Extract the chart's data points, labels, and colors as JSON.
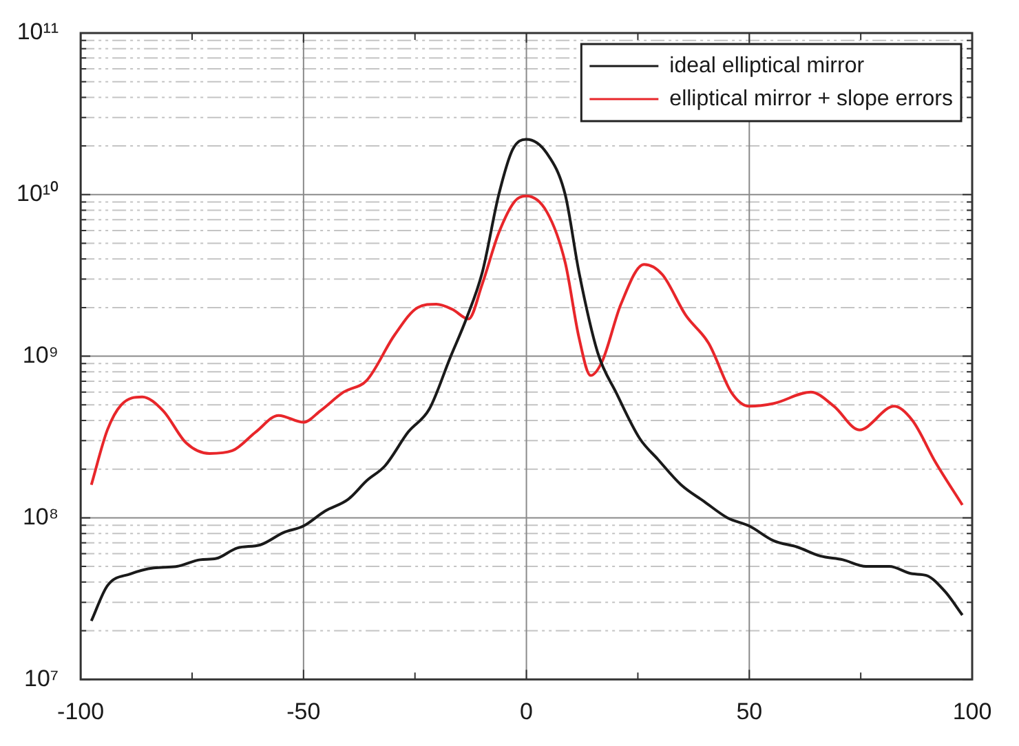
{
  "chart_data": {
    "type": "line",
    "series": [
      {
        "name": "ideal elliptical mirror",
        "color": "#1a1a1a",
        "x": [
          -97.6,
          -94,
          -88.8,
          -83.6,
          -78.4,
          -73.2,
          -69.6,
          -64.9,
          -59.7,
          -54.5,
          -50,
          -45.2,
          -40,
          -35.8,
          -31.7,
          -26.5,
          -21.8,
          -17.1,
          -13.5,
          -9.9,
          -6.2,
          -3.1,
          0,
          4.6,
          8.7,
          11.8,
          16,
          20.2,
          25.4,
          29.5,
          34.7,
          39.9,
          45.1,
          50,
          55.5,
          60.7,
          65.9,
          71,
          76.2,
          81.4,
          86.6,
          89.7,
          93.9,
          97.8
        ],
        "values": [
          23000000.0,
          38000000.0,
          45000000.0,
          49000000.0,
          50000000.0,
          55000000.0,
          56000000.0,
          65000000.0,
          68000000.0,
          81000000.0,
          89000000.0,
          110000000.0,
          130000000.0,
          170000000.0,
          210000000.0,
          340000000.0,
          470000000.0,
          980000000.0,
          1700000000.0,
          3300000000.0,
          10000000000.0,
          19000000000.0,
          22000000000.0,
          18000000000.0,
          10000000000.0,
          3300000000.0,
          1050000000.0,
          590000000.0,
          310000000.0,
          230000000.0,
          160000000.0,
          126000000.0,
          100000000.0,
          89000000.0,
          72000000.0,
          66000000.0,
          58000000.0,
          55000000.0,
          50000000.0,
          50000000.0,
          45000000.0,
          44000000.0,
          35000000.0,
          25000000.0
        ]
      },
      {
        "name": "elliptical mirror + slope errors",
        "color": "#e8262a",
        "x": [
          -97.6,
          -94,
          -90.9,
          -86.2,
          -81.5,
          -76.3,
          -71.1,
          -66,
          -60.7,
          -55.6,
          -50,
          -46.2,
          -41,
          -35.8,
          -29.6,
          -24.4,
          -20.2,
          -16.6,
          -13,
          -9.9,
          -6.2,
          -2.6,
          0,
          4.6,
          8.7,
          11.8,
          14.4,
          17,
          21.2,
          26.4,
          30.5,
          35.7,
          40.9,
          46.1,
          50,
          55.5,
          63.8,
          69,
          74.7,
          82.5,
          86.6,
          91.8,
          97.8
        ],
        "values": [
          160000000.0,
          350000000.0,
          500000000.0,
          560000000.0,
          460000000.0,
          290000000.0,
          250000000.0,
          260000000.0,
          340000000.0,
          430000000.0,
          390000000.0,
          460000000.0,
          600000000.0,
          710000000.0,
          1350000000.0,
          2000000000.0,
          2100000000.0,
          1950000000.0,
          1700000000.0,
          2800000000.0,
          5800000000.0,
          9100000000.0,
          9800000000.0,
          7800000000.0,
          3800000000.0,
          1300000000.0,
          760000000.0,
          930000000.0,
          2100000000.0,
          3700000000.0,
          3200000000.0,
          1800000000.0,
          1200000000.0,
          590000000.0,
          490000000.0,
          510000000.0,
          600000000.0,
          490000000.0,
          350000000.0,
          490000000.0,
          400000000.0,
          220000000.0,
          120000000.0
        ]
      }
    ],
    "xlim": [
      -100,
      100
    ],
    "xticks": [
      -100,
      {
        "value": -75,
        "label": null
      },
      -50,
      {
        "value": -25,
        "label": null
      },
      0,
      {
        "value": 25,
        "label": null
      },
      50,
      {
        "value": 75,
        "label": null
      },
      100
    ],
    "ylim": [
      10000000.0,
      100000000000.0
    ],
    "yticks": [
      {
        "value": 10000000.0,
        "label": "10⁷"
      },
      {
        "value": 20000000.0,
        "label": null
      },
      {
        "value": 30000000.0,
        "label": null
      },
      {
        "value": 40000000.0,
        "label": null
      },
      {
        "value": 50000000.0,
        "label": null
      },
      {
        "value": 60000000.0,
        "label": null
      },
      {
        "value": 70000000.0,
        "label": null
      },
      {
        "value": 80000000.0,
        "label": null
      },
      {
        "value": 90000000.0,
        "label": null
      },
      {
        "value": 100000000.0,
        "label": "10⁸"
      },
      {
        "value": 200000000.0,
        "label": null
      },
      {
        "value": 300000000.0,
        "label": null
      },
      {
        "value": 400000000.0,
        "label": null
      },
      {
        "value": 500000000.0,
        "label": null
      },
      {
        "value": 600000000.0,
        "label": null
      },
      {
        "value": 700000000.0,
        "label": null
      },
      {
        "value": 800000000.0,
        "label": null
      },
      {
        "value": 900000000.0,
        "label": null
      },
      {
        "value": 1000000000.0,
        "label": "10⁹"
      },
      {
        "value": 2000000000.0,
        "label": null
      },
      {
        "value": 3000000000.0,
        "label": null
      },
      {
        "value": 4000000000.0,
        "label": null
      },
      {
        "value": 5000000000.0,
        "label": null
      },
      {
        "value": 6000000000.0,
        "label": null
      },
      {
        "value": 7000000000.0,
        "label": null
      },
      {
        "value": 8000000000.0,
        "label": null
      },
      {
        "value": 9000000000.0,
        "label": null
      },
      {
        "value": 10000000000.0,
        "label": "10¹⁰"
      },
      {
        "value": 20000000000.0,
        "label": null
      },
      {
        "value": 30000000000.0,
        "label": null
      },
      {
        "value": 40000000000.0,
        "label": null
      },
      {
        "value": 50000000000.0,
        "label": null
      },
      {
        "value": 60000000000.0,
        "label": null
      },
      {
        "value": 70000000000.0,
        "label": null
      },
      {
        "value": 80000000000.0,
        "label": null
      },
      {
        "value": 90000000000.0,
        "label": null
      },
      {
        "value": 100000000000.0,
        "label": "10¹¹"
      }
    ],
    "log": "y",
    "grid": true,
    "legend": "top right",
    "marker": "none",
    "line_style": "solid"
  }
}
